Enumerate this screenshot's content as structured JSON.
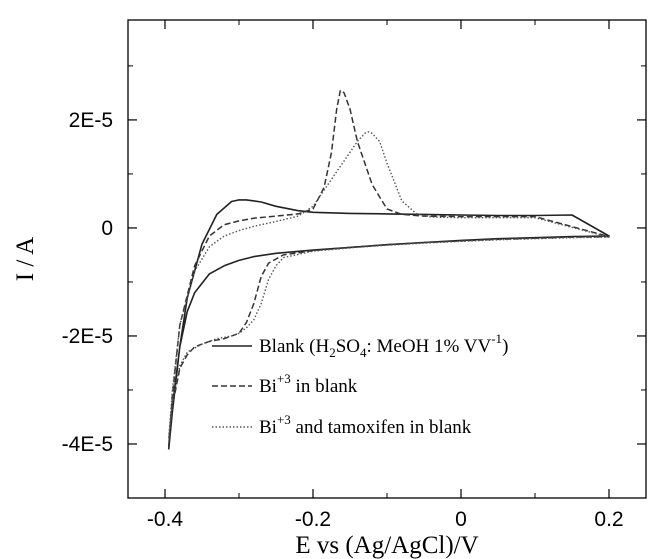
{
  "chart_data": {
    "type": "line",
    "title": "",
    "xlabel": "E vs (Ag/AgCl)/V",
    "ylabel": "I / A",
    "xlim": [
      -0.45,
      0.25
    ],
    "ylim": [
      -5e-05,
      3.85e-05
    ],
    "x_ticks": [
      -0.4,
      -0.2,
      0,
      0.2
    ],
    "x_tick_labels": [
      "-0.4",
      "-0.2",
      "0",
      "0.2"
    ],
    "y_ticks": [
      -4e-05,
      -2e-05,
      0,
      2e-05
    ],
    "y_tick_labels": [
      "-4E-5",
      "-2E-5",
      "0",
      "2E-5"
    ],
    "grid": false,
    "legend_position": "bottom-right",
    "series": [
      {
        "name": "Blank (H2SO4 : MeOH 1% VV-1)",
        "legend": {
          "prefix": "Blank (H",
          "sub1": "2",
          "mid1": "SO",
          "sub2": "4",
          "mid2": ": MeOH 1% VV",
          "sup": "-1",
          "suffix": ")"
        },
        "style": "solid",
        "forward": [
          [
            -0.395,
            -4.1e-05
          ],
          [
            -0.39,
            -3.3e-05
          ],
          [
            -0.38,
            -2.2e-05
          ],
          [
            -0.37,
            -1.55e-05
          ],
          [
            -0.36,
            -1.2e-05
          ],
          [
            -0.34,
            -8.5e-06
          ],
          [
            -0.32,
            -7e-06
          ],
          [
            -0.3,
            -6e-06
          ],
          [
            -0.28,
            -5.3e-06
          ],
          [
            -0.25,
            -4.7e-06
          ],
          [
            -0.2,
            -4.1e-06
          ],
          [
            -0.15,
            -3.6e-06
          ],
          [
            -0.1,
            -3.1e-06
          ],
          [
            -0.05,
            -2.7e-06
          ],
          [
            0,
            -2.3e-06
          ],
          [
            0.05,
            -2e-06
          ],
          [
            0.1,
            -1.8e-06
          ],
          [
            0.15,
            -1.6e-06
          ],
          [
            0.2,
            -1.5e-06
          ]
        ],
        "reverse": [
          [
            0.2,
            2.5e-06
          ],
          [
            0.15,
            2.4e-06
          ],
          [
            0.1,
            2.3e-06
          ],
          [
            0.05,
            2.3e-06
          ],
          [
            0,
            2.4e-06
          ],
          [
            -0.05,
            2.5e-06
          ],
          [
            -0.1,
            2.6e-06
          ],
          [
            -0.15,
            2.7e-06
          ],
          [
            -0.2,
            2.9e-06
          ],
          [
            -0.22,
            3.2e-06
          ],
          [
            -0.25,
            4e-06
          ],
          [
            -0.27,
            4.8e-06
          ],
          [
            -0.29,
            5.2e-06
          ],
          [
            -0.3,
            5.2e-06
          ],
          [
            -0.31,
            4.9e-06
          ],
          [
            -0.33,
            2.5e-06
          ],
          [
            -0.35,
            -3e-06
          ],
          [
            -0.37,
            -1.3e-05
          ],
          [
            -0.38,
            -2.2e-05
          ],
          [
            -0.39,
            -3.4e-05
          ],
          [
            -0.395,
            -4.1e-05
          ]
        ]
      },
      {
        "name": "Bi+3 in blank",
        "legend": {
          "prefix": "Bi",
          "sup": "+3",
          "suffix": " in blank"
        },
        "style": "dashed",
        "forward": [
          [
            -0.395,
            -4.05e-05
          ],
          [
            -0.39,
            -3.3e-05
          ],
          [
            -0.38,
            -2.6e-05
          ],
          [
            -0.37,
            -2.35e-05
          ],
          [
            -0.36,
            -2.2e-05
          ],
          [
            -0.34,
            -2.1e-05
          ],
          [
            -0.32,
            -2.05e-05
          ],
          [
            -0.3,
            -1.95e-05
          ],
          [
            -0.29,
            -1.75e-05
          ],
          [
            -0.28,
            -1.4e-05
          ],
          [
            -0.27,
            -9e-06
          ],
          [
            -0.26,
            -6.5e-06
          ],
          [
            -0.24,
            -5e-06
          ],
          [
            -0.2,
            -4.2e-06
          ],
          [
            -0.15,
            -3.6e-06
          ],
          [
            -0.1,
            -3.1e-06
          ],
          [
            -0.05,
            -2.7e-06
          ],
          [
            0,
            -2.4e-06
          ],
          [
            0.05,
            -2.1e-06
          ],
          [
            0.1,
            -1.9e-06
          ],
          [
            0.15,
            -1.7e-06
          ],
          [
            0.2,
            -1.6e-06
          ]
        ],
        "reverse": [
          [
            0.2,
            2.2e-06
          ],
          [
            0.1,
            2.1e-06
          ],
          [
            0,
            2.1e-06
          ],
          [
            -0.05,
            2.2e-06
          ],
          [
            -0.08,
            2.5e-06
          ],
          [
            -0.1,
            3.5e-06
          ],
          [
            -0.12,
            8e-06
          ],
          [
            -0.14,
            1.6e-05
          ],
          [
            -0.15,
            2.2e-05
          ],
          [
            -0.158,
            2.5e-05
          ],
          [
            -0.163,
            2.55e-05
          ],
          [
            -0.168,
            2.2e-05
          ],
          [
            -0.175,
            1.4e-05
          ],
          [
            -0.185,
            7.5e-06
          ],
          [
            -0.2,
            3.5e-06
          ],
          [
            -0.22,
            2.6e-06
          ],
          [
            -0.25,
            2.2e-06
          ],
          [
            -0.28,
            1.8e-06
          ],
          [
            -0.3,
            1.3e-06
          ],
          [
            -0.32,
            6e-07
          ],
          [
            -0.34,
            -1.5e-06
          ],
          [
            -0.36,
            -7e-06
          ],
          [
            -0.38,
            -1.8e-05
          ],
          [
            -0.39,
            -3.1e-05
          ],
          [
            -0.395,
            -4.05e-05
          ]
        ]
      },
      {
        "name": "Bi+3 and tamoxifen in blank",
        "legend": {
          "prefix": "Bi",
          "sup": "+3",
          "suffix": " and tamoxifen in blank"
        },
        "style": "dotted",
        "forward": [
          [
            -0.395,
            -3.9e-05
          ],
          [
            -0.39,
            -3.2e-05
          ],
          [
            -0.38,
            -2.55e-05
          ],
          [
            -0.37,
            -2.3e-05
          ],
          [
            -0.35,
            -2.15e-05
          ],
          [
            -0.33,
            -2.05e-05
          ],
          [
            -0.31,
            -2e-05
          ],
          [
            -0.3,
            -1.95e-05
          ],
          [
            -0.29,
            -1.85e-05
          ],
          [
            -0.28,
            -1.7e-05
          ],
          [
            -0.27,
            -1.4e-05
          ],
          [
            -0.26,
            -9.5e-06
          ],
          [
            -0.25,
            -7e-06
          ],
          [
            -0.24,
            -5.5e-06
          ],
          [
            -0.2,
            -4.3e-06
          ],
          [
            -0.15,
            -3.7e-06
          ],
          [
            -0.1,
            -3.2e-06
          ],
          [
            -0.05,
            -2.8e-06
          ],
          [
            0,
            -2.5e-06
          ],
          [
            0.05,
            -2.2e-06
          ],
          [
            0.1,
            -2e-06
          ],
          [
            0.15,
            -1.8e-06
          ],
          [
            0.2,
            -1.7e-06
          ]
        ],
        "reverse": [
          [
            0.2,
            2e-06
          ],
          [
            0.1,
            1.9e-06
          ],
          [
            0,
            1.9e-06
          ],
          [
            -0.04,
            2e-06
          ],
          [
            -0.06,
            2.6e-06
          ],
          [
            -0.08,
            5e-06
          ],
          [
            -0.1,
            1.2e-05
          ],
          [
            -0.11,
            1.6e-05
          ],
          [
            -0.12,
            1.75e-05
          ],
          [
            -0.125,
            1.78e-05
          ],
          [
            -0.13,
            1.75e-05
          ],
          [
            -0.14,
            1.6e-05
          ],
          [
            -0.16,
            1.2e-05
          ],
          [
            -0.18,
            8e-06
          ],
          [
            -0.2,
            4e-06
          ],
          [
            -0.22,
            2.2e-06
          ],
          [
            -0.25,
            1.2e-06
          ],
          [
            -0.28,
            3e-07
          ],
          [
            -0.3,
            -5e-07
          ],
          [
            -0.32,
            -1.5e-06
          ],
          [
            -0.34,
            -3.5e-06
          ],
          [
            -0.36,
            -8e-06
          ],
          [
            -0.38,
            -1.8e-05
          ],
          [
            -0.39,
            -3e-05
          ],
          [
            -0.395,
            -3.9e-05
          ]
        ]
      }
    ]
  }
}
